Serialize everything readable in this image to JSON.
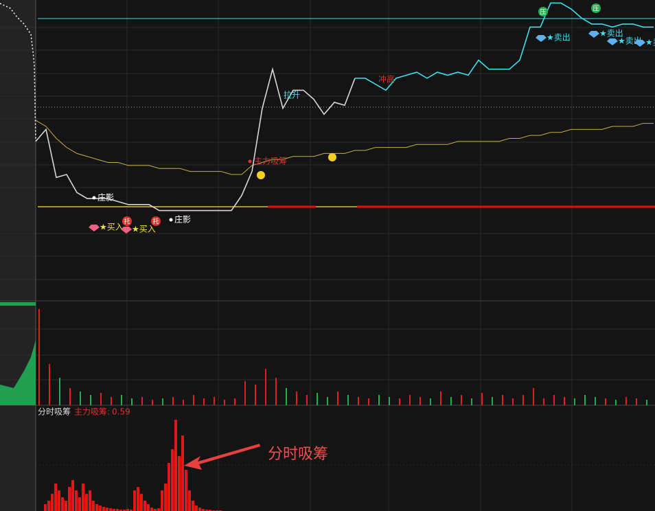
{
  "chart_data": {
    "type": "line",
    "price": {
      "ylim": [
        0,
        100
      ],
      "series": [
        {
          "name": "gray",
          "color": "#d8d8d8",
          "values": [
            53,
            57,
            41,
            42,
            36,
            34,
            34,
            34,
            33,
            32,
            32,
            32,
            30,
            30,
            30,
            30,
            30,
            30,
            30,
            30,
            35,
            43,
            64,
            77,
            64,
            70,
            70,
            67,
            62,
            66,
            65,
            74,
            null,
            null,
            null,
            null,
            null,
            null,
            null,
            null,
            null,
            null,
            null,
            null,
            null,
            null,
            null,
            null,
            null,
            null,
            null,
            null,
            null,
            null,
            null,
            null,
            null,
            null,
            null,
            null,
            null
          ]
        },
        {
          "name": "cyan",
          "color": "#3fe0f0",
          "values": [
            null,
            null,
            null,
            null,
            null,
            null,
            null,
            null,
            null,
            null,
            null,
            null,
            null,
            null,
            null,
            null,
            null,
            null,
            null,
            null,
            null,
            null,
            null,
            null,
            null,
            null,
            null,
            null,
            null,
            null,
            null,
            74,
            74,
            72,
            70,
            74,
            75,
            76,
            74,
            76,
            75,
            76,
            75,
            80,
            77,
            77,
            77,
            80,
            91,
            91,
            99,
            99,
            97,
            94,
            92,
            92,
            91,
            92,
            92,
            91,
            91
          ]
        },
        {
          "name": "avg",
          "color": "#c8b040",
          "values": [
            60,
            58,
            54,
            51,
            49,
            48,
            47,
            46,
            46,
            45,
            45,
            45,
            44,
            44,
            44,
            43,
            43,
            43,
            43,
            42,
            42,
            45,
            46,
            47,
            47,
            48,
            48,
            48,
            49,
            49,
            49,
            50,
            50,
            51,
            51,
            51,
            51,
            52,
            52,
            52,
            52,
            53,
            53,
            53,
            53,
            53,
            54,
            54,
            55,
            55,
            56,
            56,
            57,
            57,
            57,
            57,
            58,
            58,
            58,
            59,
            59
          ]
        }
      ]
    },
    "volume": {
      "ylim": [
        0,
        150
      ],
      "values": [
        140,
        60,
        40,
        25,
        20,
        15,
        18,
        12,
        15,
        10,
        12,
        8,
        10,
        12,
        8,
        15,
        10,
        12,
        8,
        10,
        35,
        30,
        53,
        40,
        25,
        20,
        15,
        18,
        12,
        20,
        15,
        12,
        10,
        15,
        12,
        10,
        15,
        12,
        10,
        20,
        12,
        15,
        10,
        18,
        12,
        15,
        10,
        15,
        25,
        10,
        15,
        12,
        10,
        15,
        12,
        10,
        8,
        12,
        10,
        8
      ]
    },
    "indicator": {
      "title": "分时吸筹",
      "label": "主力吸筹:",
      "value": 0.59,
      "ylim": [
        0,
        150
      ],
      "values": [
        10,
        15,
        25,
        40,
        30,
        20,
        15,
        35,
        45,
        30,
        20,
        40,
        25,
        30,
        15,
        10,
        8,
        6,
        5,
        4,
        3,
        3,
        2,
        2,
        3,
        2,
        30,
        35,
        25,
        15,
        10,
        5,
        3,
        4,
        30,
        40,
        70,
        90,
        133,
        80,
        110,
        60,
        30,
        15,
        8,
        5,
        3,
        2,
        2,
        1,
        1,
        1
      ]
    },
    "annotations": [
      {
        "text": "庄影",
        "color": "#ffffff"
      },
      {
        "text": "庄影",
        "color": "#ffffff"
      },
      {
        "text": "★买入",
        "color": "#f0e040"
      },
      {
        "text": "★买入",
        "color": "#f0e040"
      },
      {
        "text": "拉升",
        "color": "#3fe0f0"
      },
      {
        "text": "主力吸筹",
        "color": "#e03030"
      },
      {
        "text": "冲高",
        "color": "#e03030"
      },
      {
        "text": "★卖出",
        "color": "#3fe0f0"
      },
      {
        "text": "★卖出",
        "color": "#3fe0f0"
      },
      {
        "text": "★卖出",
        "color": "#3fe0f0"
      },
      {
        "text": "★卖",
        "color": "#3fe0f0"
      }
    ],
    "badges": [
      {
        "text": "托",
        "color": "#e03030"
      },
      {
        "text": "托",
        "color": "#e03030"
      },
      {
        "text": "压",
        "color": "#20b050"
      },
      {
        "text": "压",
        "color": "#20b050"
      }
    ],
    "callout": "分时吸筹"
  }
}
